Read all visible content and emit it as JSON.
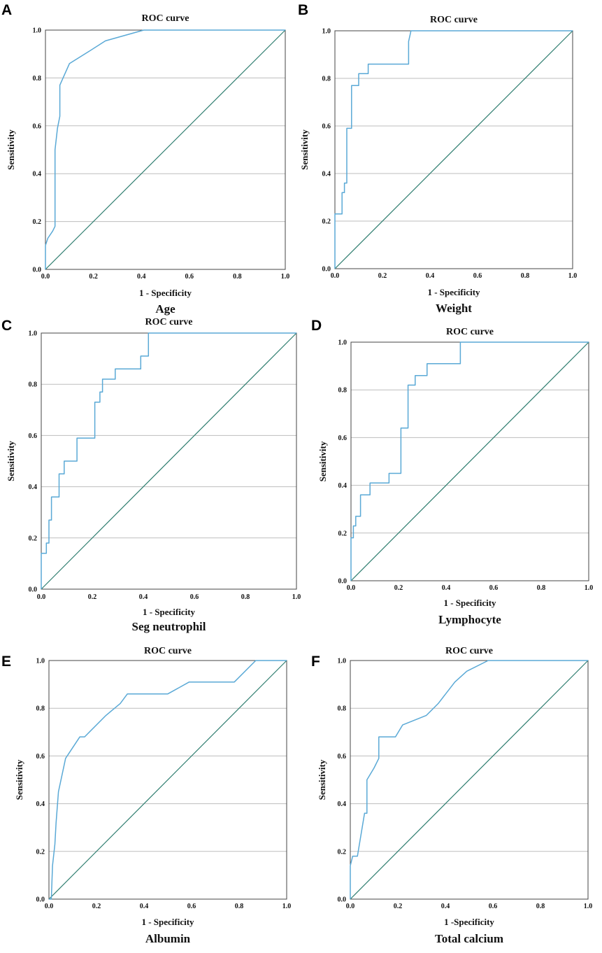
{
  "colors": {
    "roc": "#5aa9d6",
    "reference": "#2e7d6f"
  },
  "chart_data": [
    {
      "panel": "A",
      "type": "line",
      "title": "ROC curve",
      "xlabel": "1 - Specificity",
      "ylabel": "Sensitivity",
      "variable": "Age",
      "xlim": [
        0,
        1
      ],
      "ylim": [
        0,
        1
      ],
      "xticks": [
        "0.0",
        "0.2",
        "0.4",
        "0.6",
        "0.8",
        "1.0"
      ],
      "yticks": [
        "0.0",
        "0.2",
        "0.4",
        "0.6",
        "0.8",
        "1.0"
      ],
      "series": [
        {
          "name": "ROC",
          "points": [
            [
              0,
              0
            ],
            [
              0,
              0.1
            ],
            [
              0.01,
              0.13
            ],
            [
              0.03,
              0.16
            ],
            [
              0.04,
              0.18
            ],
            [
              0.04,
              0.5
            ],
            [
              0.05,
              0.59
            ],
            [
              0.06,
              0.64
            ],
            [
              0.06,
              0.77
            ],
            [
              0.1,
              0.86
            ],
            [
              0.18,
              0.91
            ],
            [
              0.25,
              0.955
            ],
            [
              0.41,
              1
            ],
            [
              1,
              1
            ]
          ]
        },
        {
          "name": "Reference line",
          "points": [
            [
              0,
              0
            ],
            [
              1,
              1
            ]
          ]
        }
      ]
    },
    {
      "panel": "B",
      "type": "line",
      "title": "ROC curve",
      "xlabel": "1 - Specificity",
      "ylabel": "Sensitivity",
      "variable": "Weight",
      "xlim": [
        0,
        1
      ],
      "ylim": [
        0,
        1
      ],
      "xticks": [
        "0.0",
        "0.2",
        "0.4",
        "0.6",
        "0.8",
        "1.0"
      ],
      "yticks": [
        "0.0",
        "0.2",
        "0.4",
        "0.6",
        "0.8",
        "1.0"
      ],
      "series": [
        {
          "name": "ROC",
          "points": [
            [
              0,
              0
            ],
            [
              0,
              0.23
            ],
            [
              0.03,
              0.23
            ],
            [
              0.03,
              0.32
            ],
            [
              0.04,
              0.32
            ],
            [
              0.04,
              0.36
            ],
            [
              0.05,
              0.36
            ],
            [
              0.05,
              0.59
            ],
            [
              0.07,
              0.59
            ],
            [
              0.07,
              0.77
            ],
            [
              0.1,
              0.77
            ],
            [
              0.1,
              0.82
            ],
            [
              0.14,
              0.82
            ],
            [
              0.14,
              0.86
            ],
            [
              0.31,
              0.86
            ],
            [
              0.31,
              0.955
            ],
            [
              0.32,
              1
            ],
            [
              1,
              1
            ]
          ]
        },
        {
          "name": "Reference line",
          "points": [
            [
              0,
              0
            ],
            [
              1,
              1
            ]
          ]
        }
      ]
    },
    {
      "panel": "C",
      "type": "line",
      "title": "ROC curve",
      "xlabel": "1 - Specificity",
      "ylabel": "Sensitivity",
      "variable": "Seg neutrophil",
      "xlim": [
        0,
        1
      ],
      "ylim": [
        0,
        1
      ],
      "xticks": [
        "0.0",
        "0.2",
        "0.4",
        "0.6",
        "0.8",
        "1.0"
      ],
      "yticks": [
        "0.0",
        "0.2",
        "0.4",
        "0.6",
        "0.8",
        "1.0"
      ],
      "series": [
        {
          "name": "ROC",
          "points": [
            [
              0,
              0
            ],
            [
              0,
              0.14
            ],
            [
              0.02,
              0.14
            ],
            [
              0.02,
              0.18
            ],
            [
              0.03,
              0.18
            ],
            [
              0.03,
              0.27
            ],
            [
              0.04,
              0.27
            ],
            [
              0.04,
              0.36
            ],
            [
              0.07,
              0.36
            ],
            [
              0.07,
              0.45
            ],
            [
              0.09,
              0.45
            ],
            [
              0.09,
              0.5
            ],
            [
              0.14,
              0.5
            ],
            [
              0.14,
              0.59
            ],
            [
              0.21,
              0.59
            ],
            [
              0.21,
              0.73
            ],
            [
              0.23,
              0.73
            ],
            [
              0.23,
              0.77
            ],
            [
              0.24,
              0.77
            ],
            [
              0.24,
              0.82
            ],
            [
              0.29,
              0.82
            ],
            [
              0.29,
              0.86
            ],
            [
              0.39,
              0.86
            ],
            [
              0.39,
              0.91
            ],
            [
              0.42,
              0.91
            ],
            [
              0.42,
              1
            ],
            [
              1,
              1
            ]
          ]
        },
        {
          "name": "Reference line",
          "points": [
            [
              0,
              0
            ],
            [
              1,
              1
            ]
          ]
        }
      ]
    },
    {
      "panel": "D",
      "type": "line",
      "title": "ROC curve",
      "xlabel": "1 - Specificity",
      "ylabel": "Sensitivity",
      "variable": "Lymphocyte",
      "xlim": [
        0,
        1
      ],
      "ylim": [
        0,
        1
      ],
      "xticks": [
        "0.0",
        "0.2",
        "0.4",
        "0.6",
        "0.8",
        "1.0"
      ],
      "yticks": [
        "0.0",
        "0.2",
        "0.4",
        "0.6",
        "0.8",
        "1.0"
      ],
      "series": [
        {
          "name": "ROC",
          "points": [
            [
              0,
              0
            ],
            [
              0,
              0.18
            ],
            [
              0.01,
              0.18
            ],
            [
              0.01,
              0.23
            ],
            [
              0.02,
              0.23
            ],
            [
              0.02,
              0.27
            ],
            [
              0.04,
              0.27
            ],
            [
              0.04,
              0.36
            ],
            [
              0.08,
              0.36
            ],
            [
              0.08,
              0.41
            ],
            [
              0.16,
              0.41
            ],
            [
              0.16,
              0.45
            ],
            [
              0.21,
              0.45
            ],
            [
              0.21,
              0.64
            ],
            [
              0.24,
              0.64
            ],
            [
              0.24,
              0.82
            ],
            [
              0.27,
              0.82
            ],
            [
              0.27,
              0.86
            ],
            [
              0.32,
              0.86
            ],
            [
              0.32,
              0.91
            ],
            [
              0.46,
              0.91
            ],
            [
              0.46,
              1
            ],
            [
              1,
              1
            ]
          ]
        },
        {
          "name": "Reference line",
          "points": [
            [
              0,
              0
            ],
            [
              1,
              1
            ]
          ]
        }
      ]
    },
    {
      "panel": "E",
      "type": "line",
      "title": "ROC curve",
      "xlabel": "1 - Specificity",
      "ylabel": "Sensitivity",
      "variable": "Albumin",
      "xlim": [
        0,
        1
      ],
      "ylim": [
        0,
        1
      ],
      "xticks": [
        "0.0",
        "0.2",
        "0.4",
        "0.6",
        "0.8",
        "1.0"
      ],
      "yticks": [
        "0.0",
        "0.2",
        "0.4",
        "0.6",
        "0.8",
        "1.0"
      ],
      "series": [
        {
          "name": "ROC",
          "points": [
            [
              0,
              0
            ],
            [
              0.01,
              0
            ],
            [
              0.015,
              0.14
            ],
            [
              0.025,
              0.23
            ],
            [
              0.03,
              0.32
            ],
            [
              0.04,
              0.45
            ],
            [
              0.07,
              0.59
            ],
            [
              0.13,
              0.68
            ],
            [
              0.15,
              0.68
            ],
            [
              0.24,
              0.77
            ],
            [
              0.3,
              0.82
            ],
            [
              0.33,
              0.86
            ],
            [
              0.5,
              0.86
            ],
            [
              0.59,
              0.91
            ],
            [
              0.78,
              0.91
            ],
            [
              0.87,
              1
            ],
            [
              1,
              1
            ]
          ]
        },
        {
          "name": "Reference line",
          "points": [
            [
              0,
              0
            ],
            [
              1,
              1
            ]
          ]
        }
      ]
    },
    {
      "panel": "F",
      "type": "line",
      "title": "ROC curve",
      "xlabel": "1 -Specificity",
      "ylabel": "Sensitivity",
      "variable": "Total calcium",
      "xlim": [
        0,
        1
      ],
      "ylim": [
        0,
        1
      ],
      "xticks": [
        "0.0",
        "0.2",
        "0.4",
        "0.6",
        "0.8",
        "1.0"
      ],
      "yticks": [
        "0.0",
        "0.2",
        "0.4",
        "0.6",
        "0.8",
        "1.0"
      ],
      "series": [
        {
          "name": "ROC",
          "points": [
            [
              0,
              0
            ],
            [
              0,
              0.14
            ],
            [
              0.01,
              0.18
            ],
            [
              0.03,
              0.18
            ],
            [
              0.06,
              0.36
            ],
            [
              0.07,
              0.36
            ],
            [
              0.07,
              0.5
            ],
            [
              0.1,
              0.55
            ],
            [
              0.12,
              0.59
            ],
            [
              0.12,
              0.68
            ],
            [
              0.19,
              0.68
            ],
            [
              0.22,
              0.73
            ],
            [
              0.32,
              0.77
            ],
            [
              0.37,
              0.82
            ],
            [
              0.44,
              0.91
            ],
            [
              0.49,
              0.955
            ],
            [
              0.58,
              1
            ],
            [
              1,
              1
            ]
          ]
        },
        {
          "name": "Reference line",
          "points": [
            [
              0,
              0
            ],
            [
              1,
              1
            ]
          ]
        }
      ]
    }
  ]
}
